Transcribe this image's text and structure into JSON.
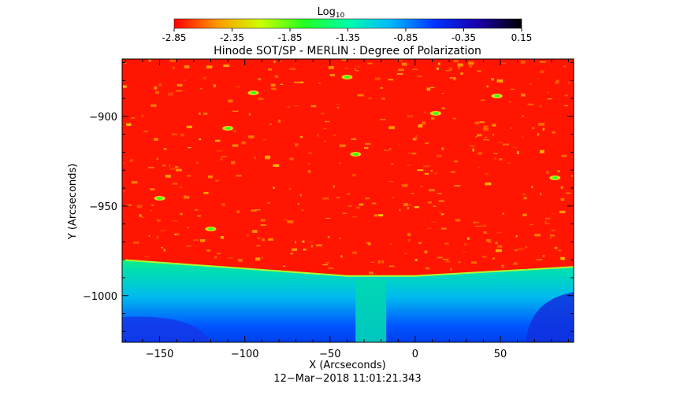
{
  "colorbar": {
    "label_main": "Log",
    "label_sub": "10",
    "ticks": [
      "-2.85",
      "-2.35",
      "-1.85",
      "-1.35",
      "-0.85",
      "-0.35",
      "0.15"
    ],
    "range": [
      -2.85,
      0.15
    ],
    "colors": [
      "#ff0000",
      "#ff9900",
      "#ccff00",
      "#22ff22",
      "#00ffaa",
      "#00b8ff",
      "#0033ff",
      "#1a00aa",
      "#000000"
    ]
  },
  "chart_data": {
    "type": "heatmap",
    "title": "Hinode SOT/SP - MERLIN : Degree of Polarization",
    "xlabel": "X (Arcseconds)",
    "ylabel": "Y (Arcseconds)",
    "xlim": [
      -172,
      93
    ],
    "ylim": [
      -1026,
      -868
    ],
    "x_ticks": [
      -150,
      -100,
      -50,
      0,
      50
    ],
    "x_tick_labels": [
      "−150",
      "−100",
      "−50",
      "0",
      "50"
    ],
    "y_ticks": [
      -900,
      -950,
      -1000
    ],
    "y_tick_labels": [
      "−900",
      "−950",
      "−1000"
    ],
    "limb": {
      "x": [
        -172,
        -40,
        0,
        93
      ],
      "y": [
        -980,
        -989,
        -989,
        -984
      ]
    },
    "disk_value": -2.85,
    "offlimb_value": -1.0,
    "timestamp": "12−Mar−2018 11:01:21.343"
  }
}
